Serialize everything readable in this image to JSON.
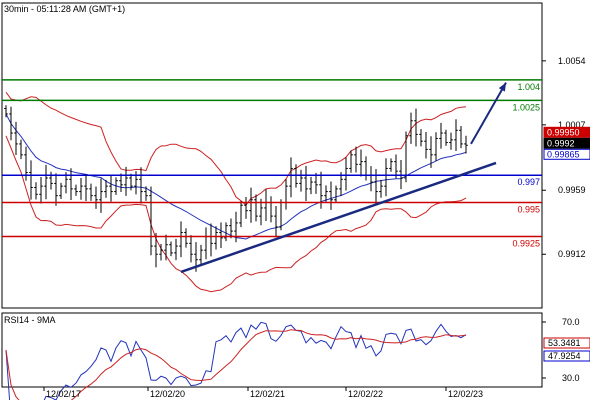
{
  "header": {
    "timestamp": "30min - 05:11:28 AM (GMT+1)"
  },
  "colors": {
    "green": "#007a00",
    "blue": "#0000cc",
    "red": "#cc0000",
    "navy": "#1a2a80",
    "bollinger": "#cc2222",
    "ma": "#2233bb",
    "price_tag_red": "#cc0000",
    "price_tag_blue": "#0000cc"
  },
  "chart_data": [
    {
      "type": "candlestick",
      "y_ticks": [
        "1.0054",
        "1.0007",
        "0.9959",
        "0.9912"
      ],
      "ylim": [
        0.9874,
        1.0095
      ],
      "x_ticks": [
        "12/02/17",
        "12/02/20",
        "12/02/21",
        "12/02/22",
        "12/02/23"
      ],
      "levels": [
        {
          "value": 1.004,
          "label": "1.004",
          "color": "green"
        },
        {
          "value": 1.0025,
          "label": "1.0025",
          "color": "green"
        },
        {
          "value": 0.997,
          "label": "0.997",
          "color": "blue"
        },
        {
          "value": 0.995,
          "label": "0.995",
          "color": "red"
        },
        {
          "value": 0.9925,
          "label": "0.9925",
          "color": "red"
        }
      ],
      "trendline": {
        "from": {
          "x_index": 35,
          "price": 0.9899
        },
        "to": {
          "x_index": 98,
          "price": 0.9979
        }
      },
      "projection_arrow": {
        "from": {
          "x_index": 93,
          "price": 0.9993
        },
        "to": {
          "x_index": 100,
          "price": 1.0038
        }
      },
      "price_tags": [
        {
          "label": "0.99950",
          "color": "price_tag_red"
        },
        {
          "label": "0.9992",
          "color": "black"
        },
        {
          "label": "0.99865",
          "color": "price_tag_blue"
        }
      ],
      "closes": [
        1.0015,
        1.0001,
        0.9993,
        0.9985,
        0.9972,
        0.9961,
        0.9956,
        0.9962,
        0.9968,
        0.9964,
        0.9955,
        0.9962,
        0.9967,
        0.996,
        0.9958,
        0.9962,
        0.996,
        0.9955,
        0.9952,
        0.9958,
        0.9962,
        0.9958,
        0.9966,
        0.9963,
        0.9968,
        0.9962,
        0.9967,
        0.9958,
        0.9955,
        0.9918,
        0.9912,
        0.9915,
        0.9919,
        0.9913,
        0.9918,
        0.9928,
        0.992,
        0.9912,
        0.9908,
        0.9915,
        0.9925,
        0.992,
        0.9928,
        0.9924,
        0.9933,
        0.9929,
        0.9935,
        0.9948,
        0.9944,
        0.9952,
        0.994,
        0.9946,
        0.995,
        0.994,
        0.9932,
        0.995,
        0.9962,
        0.9975,
        0.9964,
        0.9968,
        0.996,
        0.9965,
        0.9963,
        0.9955,
        0.9958,
        0.9952,
        0.996,
        0.9967,
        0.9975,
        0.9985,
        0.9978,
        0.998,
        0.997,
        0.9965,
        0.9958,
        0.9962,
        0.9975,
        0.998,
        0.9973,
        0.9968,
        0.9999,
        1.001,
        1.0,
        0.9995,
        0.9989,
        0.9985,
        0.9997,
        1.0001,
        0.9994,
        0.9996,
        1.0003,
        0.9993,
        0.9992
      ],
      "rsi": {
        "label": "RSI14 - 9MA",
        "y_ticks": [
          "70.0",
          "30.0"
        ],
        "ylim": [
          25,
          75
        ],
        "tag_values": [
          "53.3481",
          "47.9254"
        ]
      }
    }
  ]
}
